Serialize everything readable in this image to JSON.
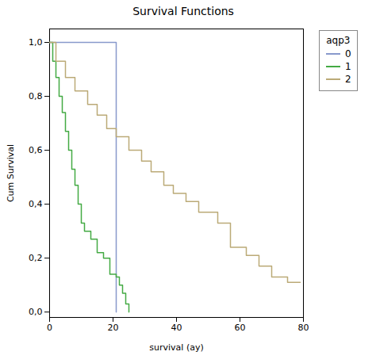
{
  "chart_data": {
    "type": "line",
    "line_style": "step",
    "title": "Survival Functions",
    "xlabel": "survival (ay)",
    "ylabel": "Cum Survival",
    "xlim": [
      0,
      80
    ],
    "ylim": [
      -0.02,
      1.05
    ],
    "xticks": [
      0,
      20,
      40,
      60,
      80
    ],
    "yticks": [
      {
        "value": 0.0,
        "label": "0,0"
      },
      {
        "value": 0.2,
        "label": "0,2"
      },
      {
        "value": 0.4,
        "label": "0,4"
      },
      {
        "value": 0.6,
        "label": "0,6"
      },
      {
        "value": 0.8,
        "label": "0,8"
      },
      {
        "value": 1.0,
        "label": "1,0"
      }
    ],
    "grid": false,
    "legend": "right",
    "legend_title": "aqp3",
    "series": [
      {
        "name": "0",
        "color": "#8899cc",
        "x": [
          0,
          21,
          21
        ],
        "values": [
          1.0,
          1.0,
          0.0
        ]
      },
      {
        "name": "1",
        "color": "#44aa44",
        "x": [
          0,
          1,
          2,
          3,
          4,
          5,
          6,
          7,
          8,
          9,
          10,
          11,
          13,
          15,
          17,
          19,
          21,
          22,
          23,
          24,
          25
        ],
        "values": [
          1.0,
          0.93,
          0.87,
          0.8,
          0.74,
          0.67,
          0.6,
          0.53,
          0.47,
          0.4,
          0.33,
          0.3,
          0.27,
          0.22,
          0.2,
          0.14,
          0.13,
          0.1,
          0.07,
          0.03,
          0.0
        ]
      },
      {
        "name": "2",
        "color": "#bbaa77",
        "x": [
          0,
          2,
          5,
          8,
          12,
          15,
          18,
          21,
          25,
          29,
          32,
          36,
          39,
          43,
          47,
          53,
          57,
          62,
          66,
          70,
          75,
          79
        ],
        "values": [
          1.0,
          0.93,
          0.87,
          0.82,
          0.77,
          0.73,
          0.68,
          0.65,
          0.6,
          0.56,
          0.52,
          0.47,
          0.44,
          0.41,
          0.37,
          0.33,
          0.24,
          0.21,
          0.17,
          0.13,
          0.11,
          0.11
        ]
      }
    ]
  }
}
